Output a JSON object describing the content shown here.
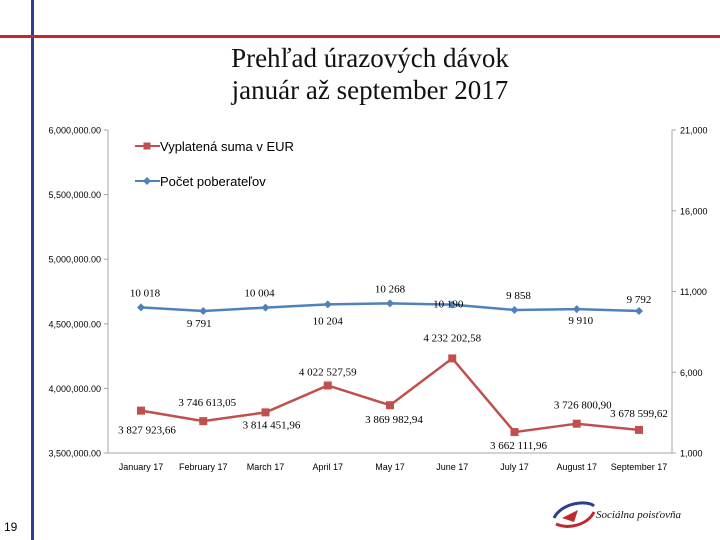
{
  "slide": {
    "title_line1": "Prehľad úrazových dávok",
    "title_line2": "január až september 2017",
    "page_number": "19",
    "logo_text": "Sociálna poisťovňa",
    "accent_red": "#c0282e",
    "accent_blue": "#2b3e8f"
  },
  "chart_data": {
    "type": "line",
    "categories": [
      "January 17",
      "February 17",
      "March 17",
      "April 17",
      "May 17",
      "June 17",
      "July 17",
      "August 17",
      "September 17"
    ],
    "series": [
      {
        "name": "Vyplatená suma v EUR",
        "axis": "left",
        "color": "#c0504d",
        "marker": "square",
        "values": [
          3827923.66,
          3746613.05,
          3814451.96,
          4022527.59,
          3869982.94,
          4232202.58,
          3662111.96,
          3726800.9,
          3678599.62
        ],
        "labels": [
          "3 827 923,66",
          "3 746 613,05",
          "3 814 451,96",
          "4 022 527,59",
          "3 869 982,94",
          "4 232 202,58",
          "3 662 111,96",
          "3 726 800,90",
          "3 678 599,62"
        ]
      },
      {
        "name": "Počet poberateľov",
        "axis": "right",
        "color": "#4f81bd",
        "marker": "diamond",
        "values": [
          10018,
          9791,
          10004,
          10204,
          10268,
          10190,
          9858,
          9910,
          9792
        ],
        "labels": [
          "10 018",
          "9 791",
          "10 004",
          "10 204",
          "10 268",
          "10 190",
          "9 858",
          "9 910",
          "9 792"
        ]
      }
    ],
    "y_left": {
      "min": 3500000,
      "max": 6000000,
      "ticks": [
        3500000,
        4000000,
        4500000,
        5000000,
        5500000,
        6000000
      ],
      "tick_labels": [
        "3,500,000.00",
        "4,000,000.00",
        "4,500,000.00",
        "5,000,000.00",
        "5,500,000.00",
        "6,000,000.00"
      ]
    },
    "y_right": {
      "min": 1000,
      "max": 21000,
      "ticks": [
        1000,
        6000,
        11000,
        16000,
        21000
      ],
      "tick_labels": [
        "1,000",
        "6,000",
        "11,000",
        "16,000",
        "21,000"
      ]
    },
    "legend_position": "top-left",
    "grid": false
  }
}
